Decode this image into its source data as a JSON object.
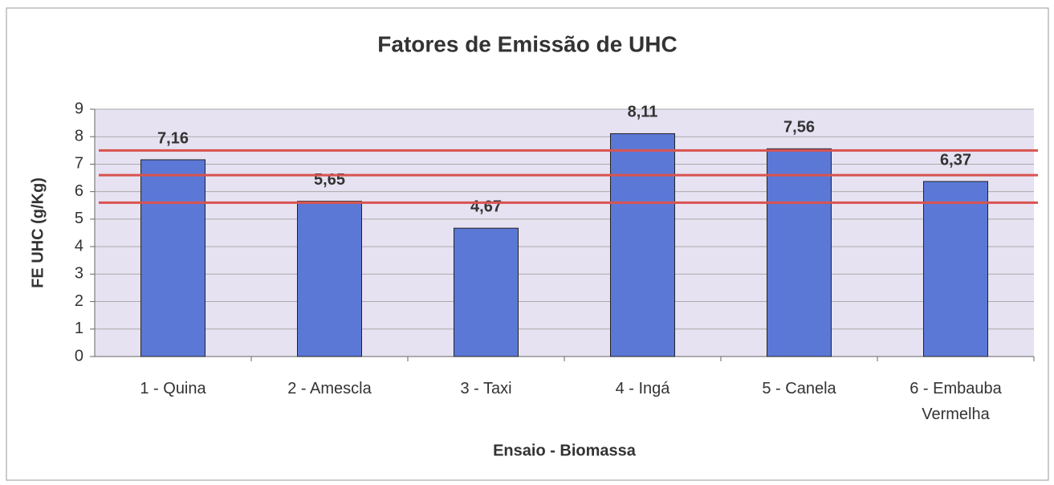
{
  "chart_data": {
    "type": "bar",
    "title": "Fatores de Emissão de UHC",
    "x_label": "Ensaio - Biomassa",
    "y_label": "FE UHC (g/Kg)",
    "categories": [
      "1 - Quina",
      "2 - Amescla",
      "3 - Taxi",
      "4 - Ingá",
      "5 - Canela",
      "6 - Embauba Vermelha"
    ],
    "values": [
      7.16,
      5.65,
      4.67,
      8.11,
      7.56,
      6.37
    ],
    "value_labels": [
      "7,16",
      "5,65",
      "4,67",
      "8,11",
      "7,56",
      "6,37"
    ],
    "color": "#5b78d6",
    "reference_lines": [
      7.5,
      6.6,
      5.6
    ],
    "reference_color": "#d9534f",
    "ylim": [
      0,
      9
    ],
    "yticks": [
      0,
      1,
      2,
      3,
      4,
      5,
      6,
      7,
      8,
      9
    ],
    "grid": true
  }
}
